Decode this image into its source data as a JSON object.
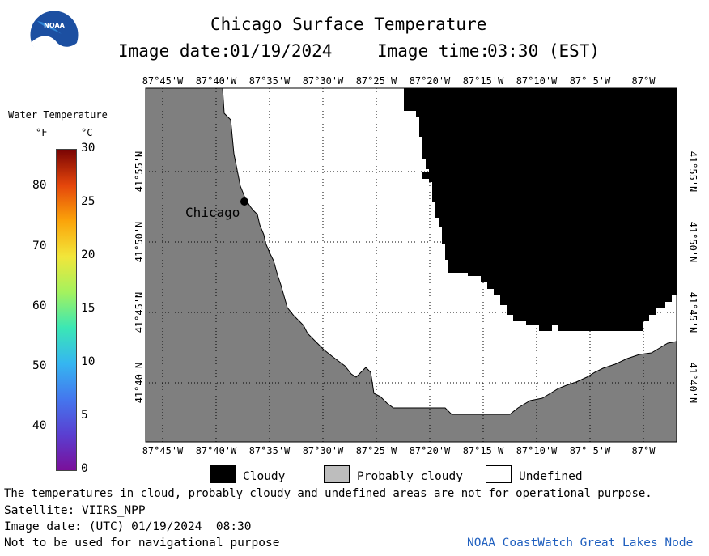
{
  "logo": {
    "text": "NOAA"
  },
  "header": {
    "title": "Chicago Surface Temperature",
    "date_label": "Image date:",
    "date_value": "01/19/2024",
    "time_label": "Image time:",
    "time_value": "03:30 (EST)"
  },
  "legend": {
    "title": "Water Temperature",
    "unit_f": "°F",
    "unit_c": "°C",
    "f_ticks": [
      "80",
      "70",
      "60",
      "50",
      "40"
    ],
    "c_ticks": [
      "30",
      "25",
      "20",
      "15",
      "10",
      "5",
      "0"
    ],
    "gradient_colors": [
      "#7a0403",
      "#e5460b",
      "#fba40a",
      "#f2e63a",
      "#a4f25e",
      "#3be7b5",
      "#35b6f1",
      "#4477ee",
      "#5a3fd1",
      "#7a0f9a"
    ]
  },
  "map": {
    "lon_labels": [
      "87°45'W",
      "87°40'W",
      "87°35'W",
      "87°30'W",
      "87°25'W",
      "87°20'W",
      "87°15'W",
      "87°10'W",
      "87° 5'W",
      "87°W"
    ],
    "lat_labels": [
      "41°55'N",
      "41°50'N",
      "41°45'N",
      "41°40'N"
    ],
    "city_label": "Chicago",
    "colors": {
      "land": "#7f7f7f",
      "cloudy": "#000000",
      "undefined": "#ffffff"
    }
  },
  "categories": {
    "cloudy": "Cloudy",
    "probably_cloudy": "Probably cloudy",
    "undefined": "Undefined"
  },
  "footer": {
    "disclaimer": "The temperatures in cloud, probably cloudy and undefined areas are not for operational purpose.",
    "satellite": "Satellite: VIIRS_NPP",
    "utc_date": "Image date: (UTC) 01/19/2024  08:30",
    "nav_warning": "Not to be used for navigational purpose",
    "credit": "NOAA CoastWatch Great Lakes Node"
  }
}
